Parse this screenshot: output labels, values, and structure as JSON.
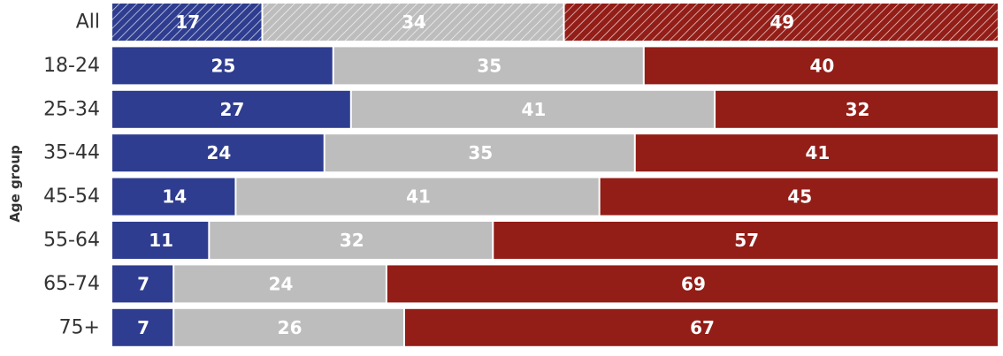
{
  "chart_data": {
    "type": "bar",
    "orientation": "horizontal",
    "stacked": true,
    "normalized_to": 100,
    "ylabel": "Age group",
    "xlabel": "",
    "title": "",
    "legend": "none",
    "grid": false,
    "categories": [
      "All",
      "18-24",
      "25-34",
      "35-44",
      "45-54",
      "55-64",
      "65-74",
      "75+"
    ],
    "hatched_categories": [
      "All"
    ],
    "series": [
      {
        "color": "#2E3D8F",
        "values": [
          17,
          25,
          27,
          24,
          14,
          11,
          7,
          7
        ]
      },
      {
        "color": "#BDBDBD",
        "values": [
          34,
          35,
          41,
          35,
          41,
          32,
          24,
          26
        ]
      },
      {
        "color": "#931D17",
        "values": [
          49,
          40,
          32,
          41,
          45,
          57,
          69,
          67
        ]
      }
    ]
  }
}
